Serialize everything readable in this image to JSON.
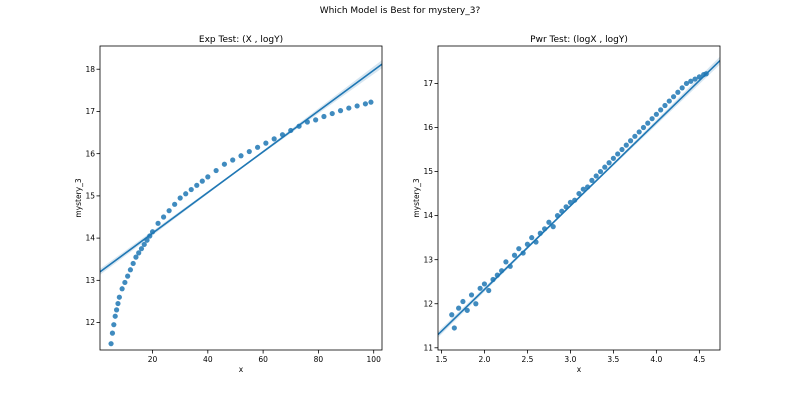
{
  "figure": {
    "suptitle": "Which Model is Best for mystery_3?"
  },
  "chart_data": [
    {
      "type": "scatter",
      "title": "Exp Test: (X , logY)",
      "xlabel": "x",
      "ylabel": "mystery_3",
      "xlim": [
        1,
        103
      ],
      "ylim": [
        11.35,
        18.55
      ],
      "xticks": [
        20,
        40,
        60,
        80,
        100
      ],
      "yticks": [
        12,
        13,
        14,
        15,
        16,
        17,
        18
      ],
      "grid": false,
      "point_color": "#1f77b4",
      "series": [
        {
          "kind": "points",
          "x": [
            5,
            5.5,
            6,
            6.5,
            7,
            7.5,
            8,
            9,
            10,
            11,
            12,
            13,
            14,
            15,
            16,
            17,
            18,
            19,
            20,
            22,
            24,
            26,
            28,
            30,
            32,
            34,
            36,
            38,
            40,
            43,
            46,
            49,
            52,
            55,
            58,
            61,
            64,
            67,
            70,
            73,
            76,
            79,
            82,
            85,
            88,
            91,
            94,
            97,
            99
          ],
          "y": [
            11.5,
            11.75,
            11.95,
            12.15,
            12.3,
            12.45,
            12.6,
            12.8,
            12.95,
            13.1,
            13.25,
            13.4,
            13.55,
            13.65,
            13.75,
            13.85,
            13.95,
            14.05,
            14.15,
            14.35,
            14.5,
            14.65,
            14.8,
            14.95,
            15.05,
            15.15,
            15.25,
            15.35,
            15.45,
            15.6,
            15.75,
            15.85,
            15.95,
            16.05,
            16.15,
            16.25,
            16.35,
            16.45,
            16.55,
            16.65,
            16.75,
            16.8,
            16.88,
            16.95,
            17.02,
            17.08,
            17.13,
            17.18,
            17.22
          ]
        },
        {
          "kind": "fit",
          "x": [
            1,
            103
          ],
          "y": [
            13.2,
            18.12
          ]
        }
      ]
    },
    {
      "type": "scatter",
      "title": "Pwr Test: (logX , logY)",
      "xlabel": "x",
      "ylabel": "mystery_3",
      "xlim": [
        1.46,
        4.74
      ],
      "ylim": [
        10.95,
        17.85
      ],
      "xticks": [
        1.5,
        2.0,
        2.5,
        3.0,
        3.5,
        4.0,
        4.5
      ],
      "yticks": [
        11,
        12,
        13,
        14,
        15,
        16,
        17
      ],
      "grid": false,
      "point_color": "#1f77b4",
      "series": [
        {
          "kind": "points",
          "x": [
            1.62,
            1.65,
            1.7,
            1.75,
            1.8,
            1.85,
            1.9,
            1.95,
            2.0,
            2.05,
            2.1,
            2.15,
            2.2,
            2.25,
            2.3,
            2.35,
            2.4,
            2.45,
            2.5,
            2.55,
            2.6,
            2.65,
            2.7,
            2.75,
            2.8,
            2.85,
            2.9,
            2.95,
            3.0,
            3.05,
            3.1,
            3.15,
            3.2,
            3.25,
            3.3,
            3.35,
            3.4,
            3.45,
            3.5,
            3.55,
            3.6,
            3.65,
            3.7,
            3.75,
            3.8,
            3.85,
            3.9,
            3.95,
            4.0,
            4.05,
            4.1,
            4.15,
            4.2,
            4.25,
            4.3,
            4.35,
            4.4,
            4.45,
            4.5,
            4.55,
            4.58
          ],
          "y": [
            11.75,
            11.45,
            11.9,
            12.05,
            11.85,
            12.2,
            12.0,
            12.35,
            12.45,
            12.3,
            12.55,
            12.65,
            12.75,
            12.95,
            12.85,
            13.1,
            13.25,
            13.15,
            13.35,
            13.5,
            13.4,
            13.6,
            13.7,
            13.85,
            13.75,
            14.0,
            14.1,
            14.2,
            14.3,
            14.35,
            14.5,
            14.6,
            14.65,
            14.8,
            14.9,
            15.0,
            15.1,
            15.2,
            15.3,
            15.4,
            15.5,
            15.6,
            15.7,
            15.8,
            15.9,
            16.0,
            16.1,
            16.2,
            16.3,
            16.4,
            16.5,
            16.6,
            16.7,
            16.8,
            16.9,
            17.0,
            17.05,
            17.1,
            17.15,
            17.2,
            17.22
          ]
        },
        {
          "kind": "fit",
          "x": [
            1.46,
            4.74
          ],
          "y": [
            11.3,
            17.52
          ]
        }
      ]
    }
  ]
}
